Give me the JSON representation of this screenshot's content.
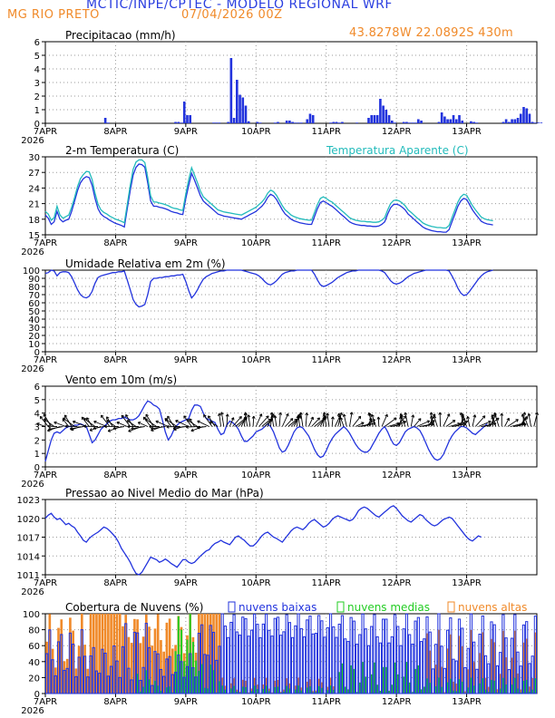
{
  "header": {
    "title": "MCTIC/INPE/CPTEC - MODELO REGIONAL WRF",
    "station": "MG RIO PRETO",
    "run": "07/04/2026 00Z",
    "coords": "43.8278W 22.0892S 430m"
  },
  "colors": {
    "blue": "#2233dd",
    "cyan": "#22bbbb",
    "orange": "#f08a2a",
    "green": "#22cc22",
    "black": "#000000",
    "grid": "#9a9a9a"
  },
  "x_axis": {
    "year": "2026",
    "ticks": [
      "7APR",
      "8APR",
      "9APR",
      "10APR",
      "11APR",
      "12APR",
      "13APR"
    ]
  },
  "chart_data": [
    {
      "type": "bar",
      "title": "Precipitacao (mm/h)",
      "ylim": [
        0,
        6
      ],
      "yticks": [
        0,
        1,
        2,
        3,
        4,
        5,
        6
      ],
      "x_hours_from_7apr_00z": "hourly, 0-167",
      "values": [
        0,
        0,
        0,
        0,
        0,
        0,
        0,
        0,
        0,
        0,
        0,
        0,
        0,
        0,
        0,
        0,
        0,
        0,
        0,
        0,
        0.4,
        0.05,
        0,
        0,
        0,
        0,
        0,
        0,
        0,
        0,
        0,
        0,
        0,
        0,
        0,
        0,
        0,
        0,
        0,
        0,
        0,
        0,
        0,
        0,
        0.1,
        0.1,
        0.05,
        1.6,
        0.6,
        0.6,
        0,
        0,
        0,
        0,
        0,
        0,
        0,
        0.05,
        0.05,
        0.05,
        0,
        0,
        0.1,
        4.8,
        0.4,
        3.2,
        2.1,
        1.9,
        1.3,
        0.15,
        0,
        0,
        0.1,
        0.05,
        0,
        0,
        0,
        0,
        0.05,
        0.1,
        0,
        0,
        0.2,
        0.2,
        0.1,
        0.05,
        0.05,
        0.05,
        0,
        0.3,
        0.7,
        0.6,
        0,
        0,
        0,
        0,
        0,
        0.05,
        0.1,
        0.1,
        0.05,
        0.1,
        0,
        0,
        0,
        0,
        0.05,
        0,
        0,
        0,
        0.4,
        0.6,
        0.6,
        0.6,
        1.8,
        1.3,
        1.0,
        0.6,
        0.2,
        0.05,
        0,
        0,
        0.1,
        0.1,
        0.05,
        0.05,
        0.05,
        0.3,
        0.2,
        0,
        0,
        0,
        0,
        0,
        0.1,
        0.8,
        0.5,
        0.3,
        0.3,
        0.6,
        0.3,
        0.6,
        0.2,
        0,
        0,
        0.15,
        0.1,
        0.05,
        0,
        0,
        0,
        0,
        0,
        0,
        0,
        0,
        0.1,
        0.3,
        0.1,
        0.3,
        0.3,
        0.4,
        0.7,
        1.2,
        1.1,
        0.7,
        0.1,
        0.05,
        0.05,
        0.05
      ]
    },
    {
      "type": "line",
      "title": "2-m Temperatura (C)",
      "ylim": [
        15,
        30
      ],
      "yticks": [
        15,
        18,
        21,
        24,
        27,
        30
      ],
      "series": [
        {
          "name": "2-m Temperatura (C)",
          "color": "#2233dd",
          "values": [
            18.8,
            18.2,
            17.0,
            17.5,
            19.5,
            18.0,
            17.5,
            17.8,
            18.0,
            19.5,
            21.5,
            23.5,
            25.0,
            25.8,
            26.2,
            26.0,
            24.5,
            22.0,
            20.0,
            19.0,
            18.5,
            18.2,
            17.8,
            17.5,
            17.2,
            17.0,
            16.8,
            16.5,
            20.0,
            23.5,
            26.5,
            28.0,
            28.6,
            28.5,
            28.0,
            25.0,
            21.5,
            20.5,
            20.5,
            20.3,
            20.2,
            20.0,
            19.8,
            19.5,
            19.3,
            19.2,
            19.0,
            18.9,
            22.0,
            24.5,
            26.8,
            25.5,
            24.0,
            22.5,
            21.5,
            21.0,
            20.5,
            20.0,
            19.5,
            19.0,
            18.8,
            18.6,
            18.5,
            18.4,
            18.3,
            18.2,
            18.1,
            18.0,
            18.3,
            18.6,
            18.9,
            19.2,
            19.5,
            20.0,
            20.5,
            21.2,
            22.2,
            22.8,
            22.5,
            21.8,
            20.8,
            19.8,
            19.0,
            18.5,
            18.0,
            17.7,
            17.5,
            17.3,
            17.2,
            17.1,
            17.0,
            17.0,
            18.5,
            20.0,
            21.2,
            21.5,
            21.2,
            20.8,
            20.5,
            20.0,
            19.5,
            19.0,
            18.5,
            18.0,
            17.5,
            17.2,
            17.0,
            16.9,
            16.8,
            16.8,
            16.7,
            16.7,
            16.6,
            16.6,
            16.7,
            17.0,
            17.5,
            19.0,
            20.2,
            20.8,
            20.9,
            20.7,
            20.3,
            19.8,
            19.0,
            18.5,
            18.0,
            17.5,
            17.0,
            16.5,
            16.2,
            16.0,
            15.8,
            15.7,
            15.6,
            15.6,
            15.5,
            15.5,
            16.0,
            17.5,
            19.0,
            20.5,
            21.5,
            22.0,
            21.8,
            20.8,
            19.8,
            19.0,
            18.3,
            17.6,
            17.3,
            17.1,
            17.0,
            16.9
          ]
        },
        {
          "name": "Temperatura Aparente (C)",
          "color": "#22bbbb",
          "values": [
            19.5,
            19.0,
            17.8,
            18.3,
            20.5,
            18.8,
            18.2,
            18.5,
            18.8,
            20.3,
            22.2,
            24.3,
            25.8,
            26.6,
            27.2,
            27.1,
            25.6,
            23.0,
            20.9,
            19.8,
            19.3,
            19.0,
            18.6,
            18.3,
            18.0,
            17.8,
            17.6,
            17.3,
            20.8,
            24.5,
            27.6,
            29.0,
            29.4,
            29.4,
            28.9,
            26.0,
            22.5,
            21.3,
            21.3,
            21.1,
            21.0,
            20.8,
            20.6,
            20.3,
            20.1,
            20.0,
            19.8,
            19.7,
            22.9,
            25.6,
            27.9,
            26.5,
            25.0,
            23.4,
            22.3,
            21.8,
            21.3,
            20.8,
            20.3,
            19.8,
            19.6,
            19.4,
            19.3,
            19.2,
            19.1,
            19.0,
            18.9,
            18.8,
            19.1,
            19.4,
            19.7,
            20.0,
            20.3,
            20.8,
            21.3,
            22.0,
            23.0,
            23.6,
            23.3,
            22.6,
            21.6,
            20.6,
            19.8,
            19.3,
            18.8,
            18.5,
            18.3,
            18.1,
            18.0,
            17.9,
            17.8,
            17.8,
            19.3,
            20.8,
            22.0,
            22.3,
            22.0,
            21.6,
            21.3,
            20.8,
            20.3,
            19.8,
            19.3,
            18.8,
            18.3,
            18.0,
            17.8,
            17.7,
            17.6,
            17.6,
            17.5,
            17.5,
            17.4,
            17.4,
            17.5,
            17.8,
            18.3,
            19.8,
            21.0,
            21.6,
            21.7,
            21.5,
            21.1,
            20.6,
            19.8,
            19.3,
            18.8,
            18.3,
            17.8,
            17.3,
            17.0,
            16.8,
            16.6,
            16.5,
            16.4,
            16.4,
            16.3,
            16.3,
            16.8,
            18.3,
            19.8,
            21.3,
            22.3,
            22.8,
            22.6,
            21.6,
            20.6,
            19.8,
            19.1,
            18.4,
            18.1,
            17.9,
            17.8,
            17.7
          ]
        }
      ]
    },
    {
      "type": "line",
      "title": "Umidade Relativa em 2m (%)",
      "ylim": [
        0,
        100
      ],
      "yticks": [
        0,
        10,
        20,
        30,
        40,
        50,
        60,
        70,
        80,
        90,
        100
      ],
      "series": [
        {
          "name": "Umidade Relativa em 2m (%)",
          "color": "#2233dd",
          "values": [
            96,
            97,
            100,
            99,
            93,
            97,
            98,
            98,
            97,
            92,
            84,
            76,
            70,
            67,
            66,
            68,
            74,
            84,
            91,
            93,
            94,
            95,
            96,
            97,
            97,
            98,
            98,
            99,
            88,
            76,
            64,
            58,
            55,
            56,
            58,
            70,
            86,
            90,
            90,
            91,
            91,
            92,
            92,
            93,
            93,
            94,
            94,
            95,
            86,
            75,
            66,
            70,
            76,
            83,
            89,
            92,
            94,
            96,
            97,
            98,
            99,
            99,
            100,
            100,
            100,
            100,
            100,
            100,
            99,
            98,
            97,
            96,
            95,
            93,
            90,
            86,
            83,
            82,
            84,
            87,
            91,
            95,
            97,
            98,
            99,
            99,
            100,
            100,
            100,
            100,
            100,
            100,
            95,
            88,
            82,
            80,
            81,
            83,
            85,
            88,
            91,
            93,
            95,
            97,
            98,
            99,
            99,
            100,
            100,
            100,
            100,
            100,
            100,
            100,
            100,
            99,
            97,
            92,
            87,
            84,
            83,
            84,
            86,
            89,
            92,
            94,
            96,
            97,
            98,
            99,
            100,
            100,
            100,
            100,
            100,
            100,
            100,
            100,
            99,
            93,
            86,
            78,
            72,
            69,
            70,
            74,
            79,
            84,
            89,
            93,
            96,
            98,
            99,
            100
          ]
        }
      ]
    },
    {
      "type": "line",
      "title": "Vento em 10m (m/s)",
      "ylim": [
        0,
        6
      ],
      "yticks": [
        0,
        1,
        2,
        3,
        4,
        5,
        6
      ],
      "series": [
        {
          "name": "Vento em 10m (m/s)",
          "color": "#2233dd",
          "values": [
            0.4,
            1.2,
            2.0,
            2.5,
            2.6,
            2.5,
            2.7,
            2.9,
            3.0,
            3.0,
            3.1,
            3.1,
            3.2,
            3.1,
            3.0,
            2.4,
            1.8,
            2.0,
            2.4,
            2.8,
            3.0,
            3.2,
            3.4,
            3.5,
            3.5,
            3.6,
            3.6,
            3.7,
            3.6,
            3.5,
            3.5,
            3.6,
            3.8,
            4.2,
            4.6,
            4.9,
            4.8,
            4.6,
            4.5,
            4.3,
            3.5,
            2.6,
            2.0,
            2.3,
            2.8,
            3.1,
            3.3,
            3.4,
            3.5,
            3.6,
            4.2,
            4.6,
            4.6,
            4.5,
            4.0,
            3.6,
            3.5,
            3.4,
            3.3,
            2.8,
            2.4,
            2.5,
            3.1,
            3.4,
            3.3,
            3.1,
            2.8,
            2.3,
            1.9,
            1.9,
            2.1,
            2.3,
            2.6,
            2.7,
            2.8,
            3.0,
            3.2,
            3.0,
            2.6,
            2.0,
            1.4,
            1.1,
            1.2,
            1.6,
            2.1,
            2.6,
            2.9,
            3.0,
            2.9,
            2.6,
            2.3,
            1.8,
            1.3,
            0.9,
            0.7,
            0.8,
            1.2,
            1.7,
            2.1,
            2.4,
            2.6,
            2.8,
            3.0,
            2.8,
            2.5,
            2.1,
            1.7,
            1.4,
            1.2,
            1.1,
            1.1,
            1.3,
            1.7,
            2.1,
            2.5,
            2.8,
            3.0,
            2.6,
            2.1,
            1.7,
            1.6,
            1.8,
            2.2,
            2.6,
            2.8,
            2.9,
            3.0,
            2.9,
            2.7,
            2.3,
            1.8,
            1.3,
            0.9,
            0.6,
            0.5,
            0.6,
            0.9,
            1.4,
            1.9,
            2.3,
            2.6,
            2.8,
            3.0,
            3.0,
            2.9,
            2.7,
            2.5,
            2.4,
            2.6,
            2.8,
            3.0,
            3.2
          ]
        }
      ]
    },
    {
      "type": "line",
      "title": "Pressao ao Nivel Medio do Mar (hPa)",
      "ylim": [
        1011,
        1023
      ],
      "yticks": [
        1011,
        1014,
        1017,
        1020,
        1023
      ],
      "series": [
        {
          "name": "Pressao ao Nivel Medio do Mar (hPa)",
          "color": "#2233dd",
          "values": [
            1020,
            1020.5,
            1020.8,
            1020.2,
            1019.8,
            1020,
            1019.5,
            1019,
            1019.2,
            1018.8,
            1018.5,
            1017.8,
            1017.2,
            1016.5,
            1016.2,
            1016.8,
            1017.2,
            1017.5,
            1017.8,
            1018.2,
            1018.6,
            1018.4,
            1018.0,
            1017.5,
            1017.0,
            1016.2,
            1015.2,
            1014.5,
            1013.8,
            1013.0,
            1012.0,
            1011.2,
            1011.0,
            1011.4,
            1012.2,
            1013.0,
            1013.8,
            1013.6,
            1013.4,
            1013.0,
            1013.2,
            1013.5,
            1013.2,
            1012.8,
            1012.5,
            1012.2,
            1012.8,
            1013.4,
            1013.4,
            1013.0,
            1012.8,
            1013.0,
            1013.5,
            1014.0,
            1014.4,
            1014.8,
            1015.0,
            1015.6,
            1016.0,
            1016.2,
            1016.5,
            1016.2,
            1016.0,
            1015.8,
            1016.4,
            1017.0,
            1017.2,
            1016.8,
            1016.5,
            1016.0,
            1015.6,
            1015.6,
            1016.0,
            1016.6,
            1017.2,
            1017.6,
            1017.8,
            1017.4,
            1017.0,
            1016.8,
            1016.5,
            1016.2,
            1016.8,
            1017.4,
            1018.0,
            1018.4,
            1018.6,
            1018.4,
            1018.2,
            1018.6,
            1019.2,
            1019.6,
            1019.8,
            1019.4,
            1019.0,
            1018.6,
            1018.8,
            1019.2,
            1019.8,
            1020.2,
            1020.4,
            1020.2,
            1020.0,
            1019.8,
            1019.6,
            1019.8,
            1020.4,
            1021.2,
            1021.6,
            1021.8,
            1021.6,
            1021.2,
            1020.8,
            1020.4,
            1020.2,
            1020.6,
            1021.0,
            1021.4,
            1021.8,
            1022.0,
            1021.6,
            1021.0,
            1020.4,
            1020.0,
            1019.6,
            1019.4,
            1019.8,
            1020.2,
            1020.6,
            1020.4,
            1019.8,
            1019.4,
            1019.0,
            1018.8,
            1019.0,
            1019.4,
            1019.8,
            1020.0,
            1020.2,
            1020.0,
            1019.4,
            1018.8,
            1018.2,
            1017.6,
            1017.0,
            1016.6,
            1016.4,
            1016.8,
            1017.2,
            1017.0
          ]
        }
      ]
    },
    {
      "type": "bar",
      "title": "Cobertura de Nuvens (%)",
      "ylim": [
        0,
        100
      ],
      "yticks": [
        0,
        20,
        40,
        60,
        80,
        100
      ],
      "series": [
        {
          "name": "nuvens baixas",
          "color": "#2233dd",
          "style": "outline"
        },
        {
          "name": "nuvens medias",
          "color": "#22cc22",
          "style": "filled"
        },
        {
          "name": "nuvens altas",
          "color": "#f08a2a",
          "style": "filled"
        }
      ]
    }
  ]
}
